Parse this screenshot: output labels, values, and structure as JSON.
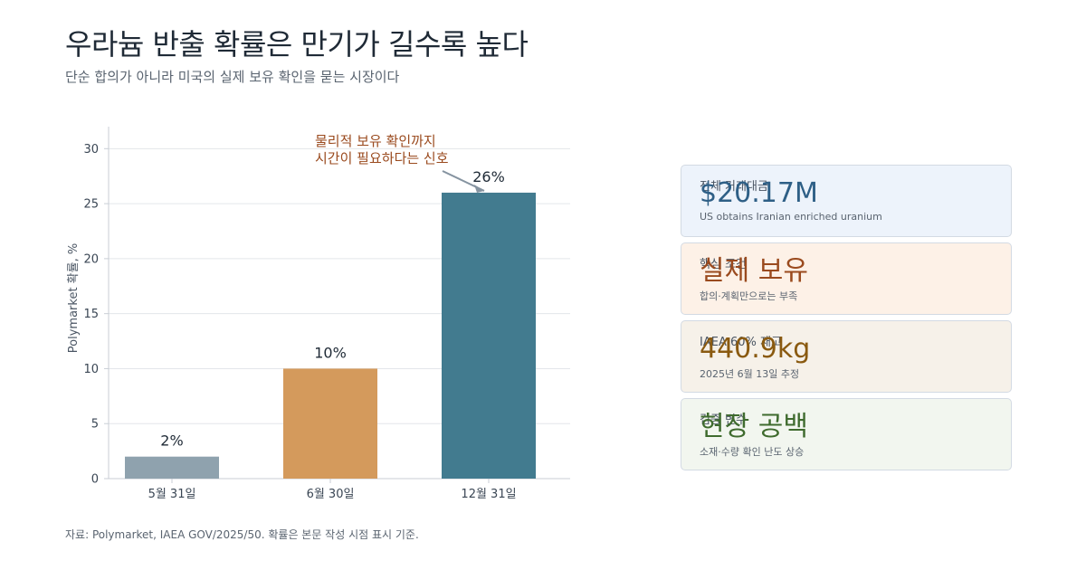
{
  "title": "우라늄 반출 확률은 만기가 길수록 높다",
  "subtitle": "단순 합의가 아니라 미국의 실제 보유 확인을 묻는 시장이다",
  "source": "자료: Polymarket, IAEA GOV/2025/50. 확률은 본문 작성 시점 표시 기준.",
  "chart_data": {
    "type": "bar",
    "categories": [
      "5월 31일",
      "6월 30일",
      "12월 31일"
    ],
    "values": [
      2,
      10,
      26
    ],
    "data_labels": [
      "2%",
      "10%",
      "26%"
    ],
    "colors": [
      "#8fa2ae",
      "#d49a5c",
      "#427b8f"
    ],
    "ylabel": "Polymarket 확률, %",
    "ylim": [
      0,
      32
    ],
    "yticks": [
      0,
      5,
      10,
      15,
      20,
      25,
      30
    ],
    "grid": true,
    "annotation": {
      "lines": [
        "물리적 보유 확인까지",
        "시간이 필요하다는 신호"
      ],
      "color": "#9a4a1e",
      "target_category": "12월 31일"
    }
  },
  "cards": [
    {
      "label": "전체 거래대금",
      "value": "$20.17M",
      "note": "US obtains Iranian enriched uranium",
      "bg": "#edf3fb",
      "color": "#2e5f86"
    },
    {
      "label": "핵심 조건",
      "value": "실제 보유",
      "note": "합의·계획만으로는 부족",
      "bg": "#fdf1e7",
      "color": "#9a4a1e"
    },
    {
      "label": "IAEA 60% 재고",
      "value": "440.9kg",
      "note": "2025년 6월 13일 추정",
      "bg": "#f6f1e9",
      "color": "#8a5a10"
    },
    {
      "label": "검증 변수",
      "value": "현장 공백",
      "note": "소재·수량 확인 난도 상승",
      "bg": "#f2f6ef",
      "color": "#3f6b2e"
    }
  ]
}
